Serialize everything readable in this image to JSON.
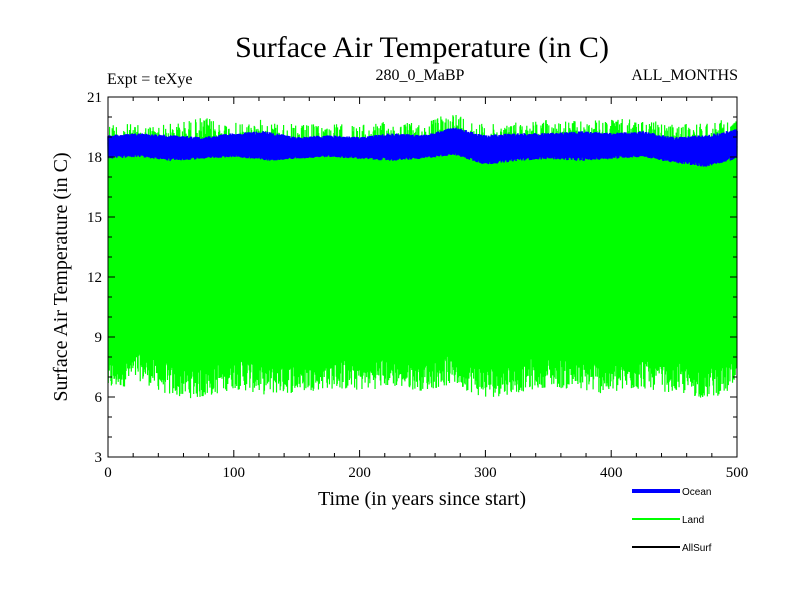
{
  "header": {
    "title": "Surface Air Temperature (in C)",
    "experiment": "Expt = teXye",
    "period": "280_0_MaBP",
    "months": "ALL_MONTHS"
  },
  "chart_data": {
    "type": "line",
    "title": "Surface Air Temperature (in C)",
    "xlabel": "Time (in years since start)",
    "ylabel": "Surface Air Temperature (in C)",
    "xlim": [
      0,
      500
    ],
    "ylim": [
      3,
      21
    ],
    "x_ticks": [
      0,
      100,
      200,
      300,
      400,
      500
    ],
    "y_ticks": [
      3,
      6,
      9,
      12,
      15,
      18,
      21
    ],
    "grid": false,
    "legend_position": "bottom-right",
    "series": [
      {
        "name": "Ocean",
        "color": "#0000ff",
        "note_range": "monthly values oscillating between about 17.8 and 19.3",
        "envelope_x": [
          0,
          25,
          50,
          75,
          100,
          125,
          150,
          175,
          200,
          225,
          250,
          275,
          300,
          325,
          350,
          375,
          400,
          425,
          450,
          475,
          500
        ],
        "envelope_min": [
          17.9,
          18.0,
          17.8,
          17.9,
          18.0,
          17.8,
          17.9,
          18.0,
          17.9,
          17.8,
          17.9,
          18.1,
          17.6,
          17.8,
          17.9,
          17.8,
          17.9,
          18.0,
          17.7,
          17.5,
          17.9
        ],
        "envelope_max": [
          19.1,
          19.2,
          19.1,
          19.0,
          19.2,
          19.3,
          19.0,
          19.1,
          19.0,
          19.2,
          19.1,
          19.5,
          19.1,
          19.2,
          19.2,
          19.3,
          19.2,
          19.3,
          19.0,
          19.1,
          19.4
        ]
      },
      {
        "name": "Land",
        "color": "#00ff00",
        "envelope_x": [
          0,
          25,
          50,
          75,
          100,
          125,
          150,
          175,
          200,
          225,
          250,
          275,
          300,
          325,
          350,
          375,
          400,
          425,
          450,
          475,
          500
        ],
        "envelope_min": [
          6.2,
          6.8,
          6.0,
          5.9,
          6.4,
          6.1,
          6.2,
          6.4,
          6.3,
          6.5,
          6.3,
          6.6,
          5.9,
          6.2,
          6.5,
          6.3,
          6.1,
          6.4,
          6.2,
          5.9,
          6.3
        ],
        "envelope_max": [
          19.8,
          19.6,
          19.7,
          20.0,
          19.7,
          19.9,
          19.6,
          19.7,
          19.6,
          19.8,
          19.7,
          20.3,
          19.6,
          19.8,
          19.9,
          19.8,
          19.9,
          19.9,
          19.6,
          19.8,
          19.9
        ]
      },
      {
        "name": "AllSurf",
        "color": "#000000",
        "values": []
      }
    ]
  }
}
